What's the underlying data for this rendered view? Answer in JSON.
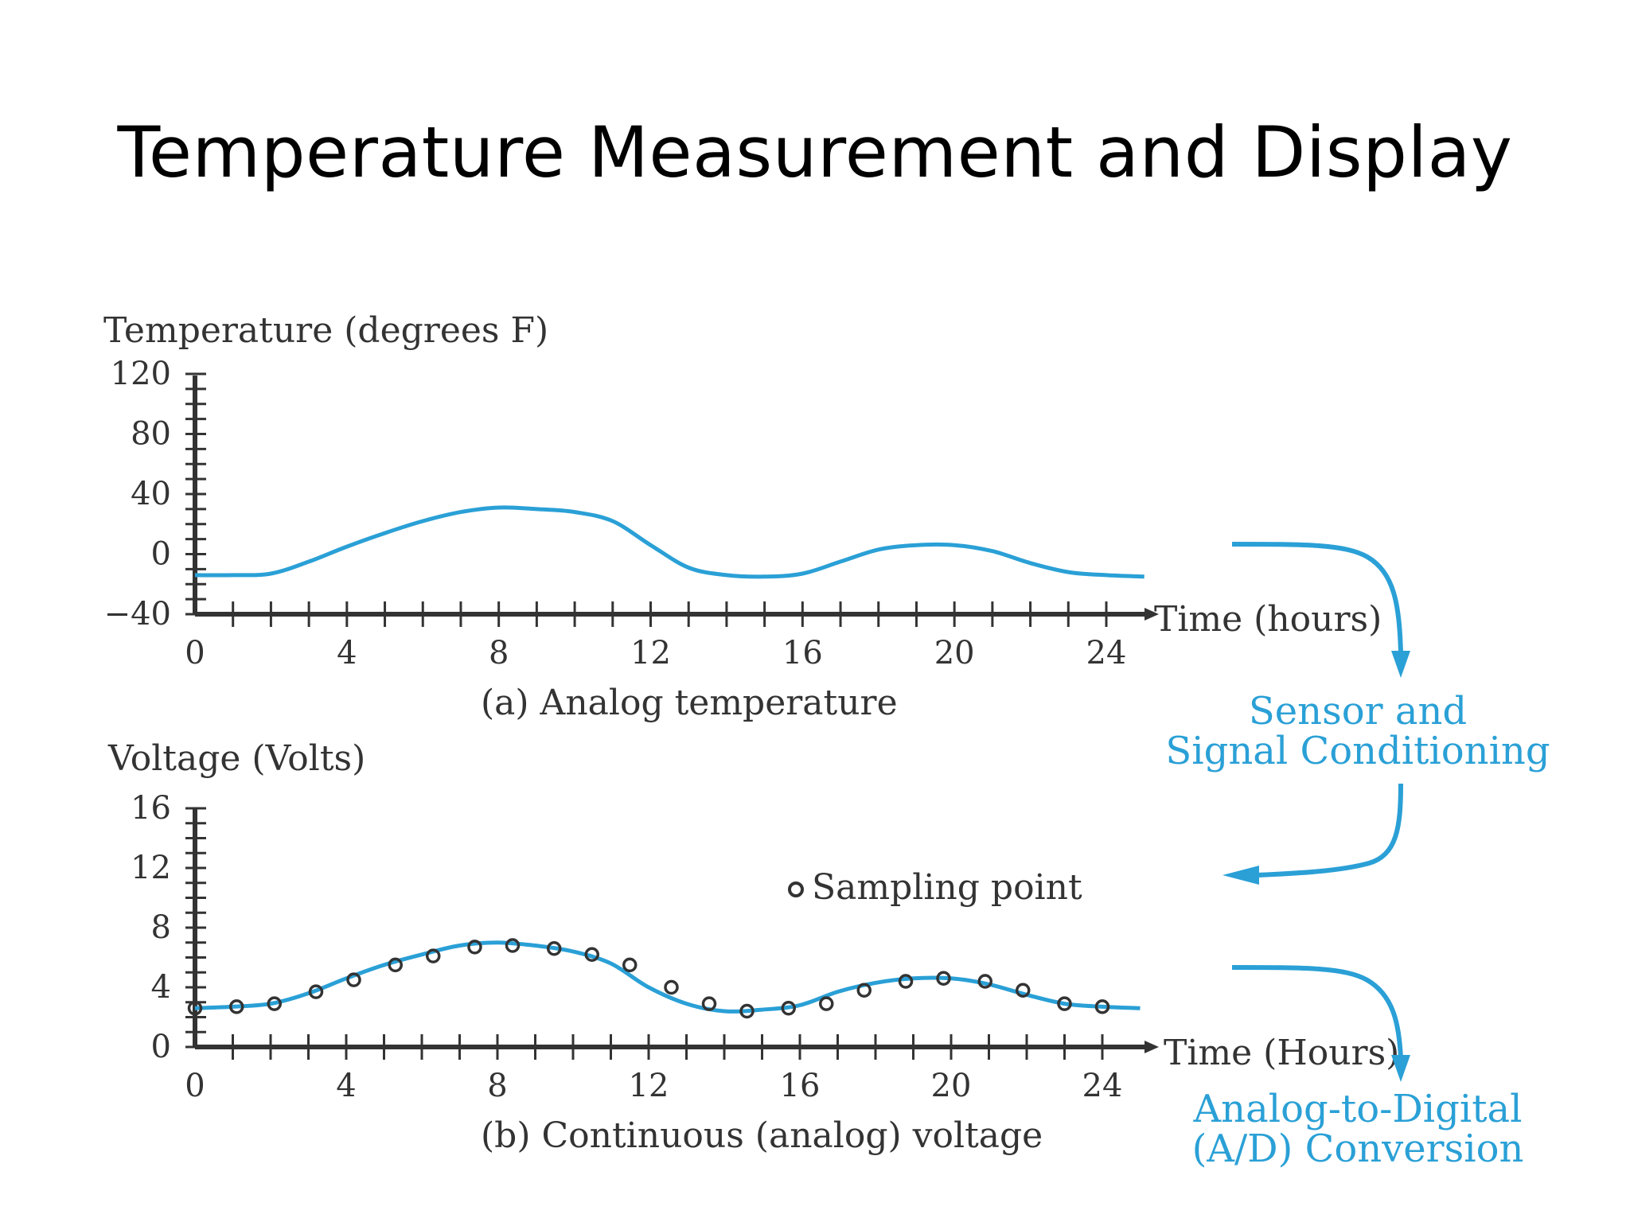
{
  "slide": {
    "title": "Temperature Measurement and Display"
  },
  "colors": {
    "curve": "#2aa0d6",
    "axis": "#333333",
    "process": "#2aa0d6"
  },
  "process": {
    "step1": [
      "Sensor and",
      "Signal Conditioning"
    ],
    "step2": [
      "Analog-to-Digital",
      "(A/D) Conversion"
    ]
  },
  "chart_data": [
    {
      "type": "line",
      "ylabel": "Temperature (degrees F)",
      "xlabel": "Time (hours)",
      "caption": "(a) Analog temperature",
      "xlim": [
        0,
        24
      ],
      "ylim": [
        -40,
        120
      ],
      "xticks": [
        "0",
        "4",
        "8",
        "12",
        "16",
        "20",
        "24"
      ],
      "yticks": [
        "120",
        "80",
        "40",
        "0",
        "−40"
      ],
      "yticks_values": [
        120,
        80,
        40,
        0,
        -40
      ],
      "x": [
        0,
        1,
        2,
        3,
        4,
        5,
        6,
        7,
        8,
        9,
        10,
        11,
        12,
        13,
        14,
        15,
        16,
        17,
        18,
        19,
        20,
        21,
        22,
        23,
        24,
        25
      ],
      "y": [
        -14,
        -14,
        -13,
        -5,
        5,
        14,
        22,
        28,
        31,
        30,
        28,
        22,
        6,
        -9,
        -14,
        -15,
        -13,
        -5,
        3,
        6,
        6,
        2,
        -6,
        -12,
        -14,
        -15
      ]
    },
    {
      "type": "line",
      "ylabel": "Voltage (Volts)",
      "xlabel": "Time (Hours)",
      "caption": "(b) Continuous (analog) voltage",
      "legend": "Sampling point",
      "xlim": [
        0,
        24
      ],
      "ylim": [
        0,
        16
      ],
      "xticks": [
        "0",
        "4",
        "8",
        "12",
        "16",
        "20",
        "24"
      ],
      "yticks": [
        "16",
        "12",
        "8",
        "4",
        "0"
      ],
      "yticks_values": [
        16,
        12,
        8,
        4,
        0
      ],
      "x": [
        0,
        1,
        2,
        3,
        4,
        5,
        6,
        7,
        8,
        9,
        10,
        11,
        12,
        13,
        14,
        15,
        16,
        17,
        18,
        19,
        20,
        21,
        22,
        23,
        24,
        25
      ],
      "y": [
        2.6,
        2.7,
        2.9,
        3.6,
        4.6,
        5.5,
        6.2,
        6.8,
        7.0,
        6.8,
        6.4,
        5.6,
        4.0,
        2.9,
        2.4,
        2.5,
        2.8,
        3.7,
        4.3,
        4.6,
        4.6,
        4.2,
        3.5,
        2.9,
        2.7,
        2.6
      ],
      "samples": [
        [
          0,
          2.6
        ],
        [
          1.1,
          2.7
        ],
        [
          2.1,
          2.9
        ],
        [
          3.2,
          3.7
        ],
        [
          4.2,
          4.5
        ],
        [
          5.3,
          5.5
        ],
        [
          6.3,
          6.1
        ],
        [
          7.4,
          6.7
        ],
        [
          8.4,
          6.8
        ],
        [
          9.5,
          6.6
        ],
        [
          10.5,
          6.2
        ],
        [
          11.5,
          5.5
        ],
        [
          12.6,
          4.0
        ],
        [
          13.6,
          2.9
        ],
        [
          14.6,
          2.4
        ],
        [
          15.7,
          2.6
        ],
        [
          16.7,
          2.9
        ],
        [
          17.7,
          3.8
        ],
        [
          18.8,
          4.4
        ],
        [
          19.8,
          4.6
        ],
        [
          20.9,
          4.4
        ],
        [
          21.9,
          3.8
        ],
        [
          23.0,
          2.9
        ],
        [
          24.0,
          2.7
        ]
      ]
    }
  ]
}
